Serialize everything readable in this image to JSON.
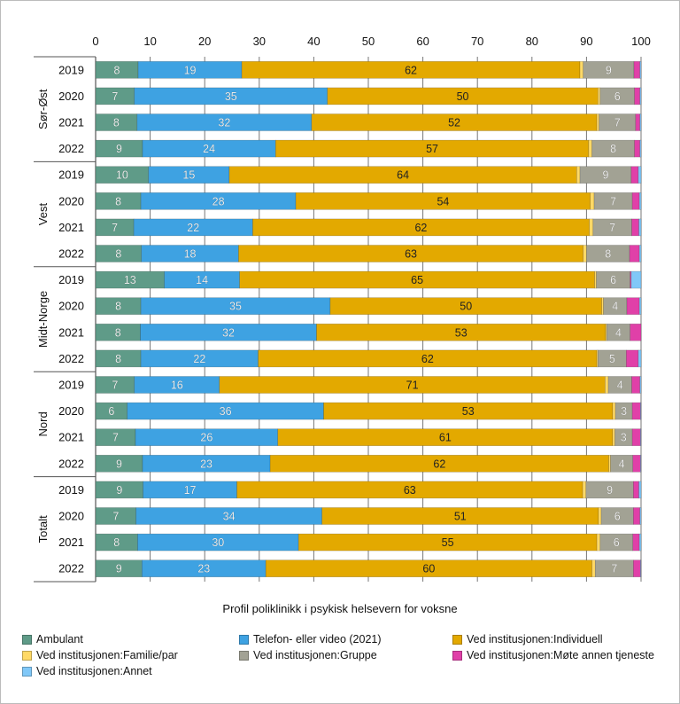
{
  "chart_data": {
    "type": "bar",
    "orientation": "horizontal",
    "stacked": true,
    "xlabel": "Profil poliklinikk i psykisk helsevern for voksne",
    "xlim": [
      0,
      100
    ],
    "xticks": [
      "0",
      "10",
      "20",
      "30",
      "40",
      "50",
      "60",
      "70",
      "80",
      "90",
      "100"
    ],
    "xaxis_position": "top",
    "grid": true,
    "legend_position": "bottom",
    "groups": [
      {
        "name": "Sør-Øst",
        "years": [
          "2019",
          "2020",
          "2021",
          "2022"
        ]
      },
      {
        "name": "Vest",
        "years": [
          "2019",
          "2020",
          "2021",
          "2022"
        ]
      },
      {
        "name": "Midt-Norge",
        "years": [
          "2019",
          "2020",
          "2021",
          "2022"
        ]
      },
      {
        "name": "Nord",
        "years": [
          "2019",
          "2020",
          "2021",
          "2022"
        ]
      },
      {
        "name": "Totalt",
        "years": [
          "2019",
          "2020",
          "2021",
          "2022"
        ]
      }
    ],
    "series": [
      {
        "name": "Ambulant",
        "color": "#5f9b88",
        "labels": true,
        "values": [
          7.8,
          7.1,
          7.6,
          8.6,
          9.7,
          8.3,
          7.0,
          8.4,
          12.6,
          8.3,
          8.2,
          8.3,
          7.1,
          5.8,
          7.3,
          8.6,
          8.7,
          7.4,
          7.7,
          8.5
        ]
      },
      {
        "name": "Telefon- eller video (2021)",
        "color": "#3ea2e2",
        "labels": true,
        "values": [
          19.0,
          35.4,
          32.0,
          24.4,
          14.8,
          28.4,
          21.8,
          17.8,
          13.8,
          34.7,
          32.3,
          21.5,
          15.6,
          36.0,
          26.1,
          23.4,
          17.2,
          34.1,
          29.5,
          22.7
        ]
      },
      {
        "name": "Ved institusjonen:Individuell",
        "color": "#e3a900",
        "labels": true,
        "values": [
          62.0,
          49.6,
          52.3,
          57.4,
          63.7,
          54.0,
          61.7,
          63.2,
          65.1,
          49.8,
          53.0,
          62.1,
          70.7,
          53.0,
          61.4,
          62.1,
          63.4,
          50.7,
          54.7,
          59.8
        ]
      },
      {
        "name": "Ved institusjonen:Familie/par",
        "color": "#ffd966",
        "labels": false,
        "values": [
          0.6,
          0.4,
          0.4,
          0.6,
          0.6,
          0.7,
          0.7,
          0.6,
          0.3,
          0.3,
          0.2,
          0.2,
          0.6,
          0.5,
          0.4,
          0.3,
          0.6,
          0.5,
          0.6,
          0.6
        ]
      },
      {
        "name": "Ved institusjonen:Gruppe",
        "color": "#a2a294",
        "labels": true,
        "values": [
          9.3,
          6.3,
          6.7,
          7.8,
          9.4,
          7.0,
          7.1,
          7.9,
          6.2,
          4.3,
          4.3,
          5.2,
          4.3,
          3.1,
          3.2,
          4.1,
          8.7,
          5.9,
          6.0,
          7.0
        ]
      },
      {
        "name": "Ved institusjonen:Møte annen tjeneste",
        "color": "#e040a8",
        "labels": false,
        "values": [
          1.1,
          1.0,
          0.8,
          1.0,
          1.3,
          1.3,
          1.3,
          1.8,
          0.2,
          2.3,
          2.0,
          2.2,
          1.5,
          1.5,
          1.5,
          1.4,
          1.0,
          1.2,
          1.2,
          1.3
        ]
      },
      {
        "name": "Ved institusjonen:Annet",
        "color": "#80c8f8",
        "labels": false,
        "values": [
          0.2,
          0.2,
          0.2,
          0.2,
          0.5,
          0.3,
          0.4,
          0.3,
          1.8,
          0.3,
          0.0,
          0.5,
          0.2,
          0.1,
          0.1,
          0.1,
          0.4,
          0.2,
          0.3,
          0.1
        ]
      }
    ]
  }
}
